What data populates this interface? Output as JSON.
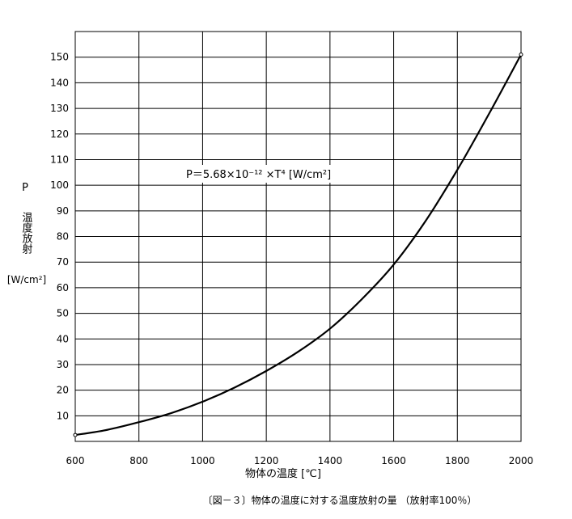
{
  "chart_data": {
    "type": "line",
    "title": "",
    "xlabel": "物体の温度 [℃]",
    "ylabel_symbol": "P",
    "ylabel_text": "温度放射",
    "ylabel_unit": "[W/cm²]",
    "formula": "P＝5.68×10⁻¹² ×T⁴  [W/cm²]",
    "caption": "〔図－３〕物体の温度に対する温度放射の量 （放射率100％）",
    "xlim": [
      600,
      2000
    ],
    "ylim": [
      0,
      160
    ],
    "x_ticks": [
      600,
      800,
      1000,
      1200,
      1400,
      1600,
      1800,
      2000
    ],
    "y_ticks": [
      10,
      20,
      30,
      40,
      50,
      60,
      70,
      80,
      90,
      100,
      110,
      120,
      130,
      140,
      150
    ],
    "grid": true,
    "series": [
      {
        "color": "#000000",
        "x": [
          600,
          700,
          800,
          900,
          1000,
          1100,
          1200,
          1300,
          1400,
          1500,
          1600,
          1700,
          1800,
          1900,
          2000
        ],
        "y": [
          2.5,
          4.5,
          7.5,
          11.0,
          15.5,
          21.0,
          27.5,
          35.0,
          44.0,
          55.5,
          69.0,
          86.0,
          106.0,
          128.0,
          151.0
        ]
      }
    ]
  }
}
